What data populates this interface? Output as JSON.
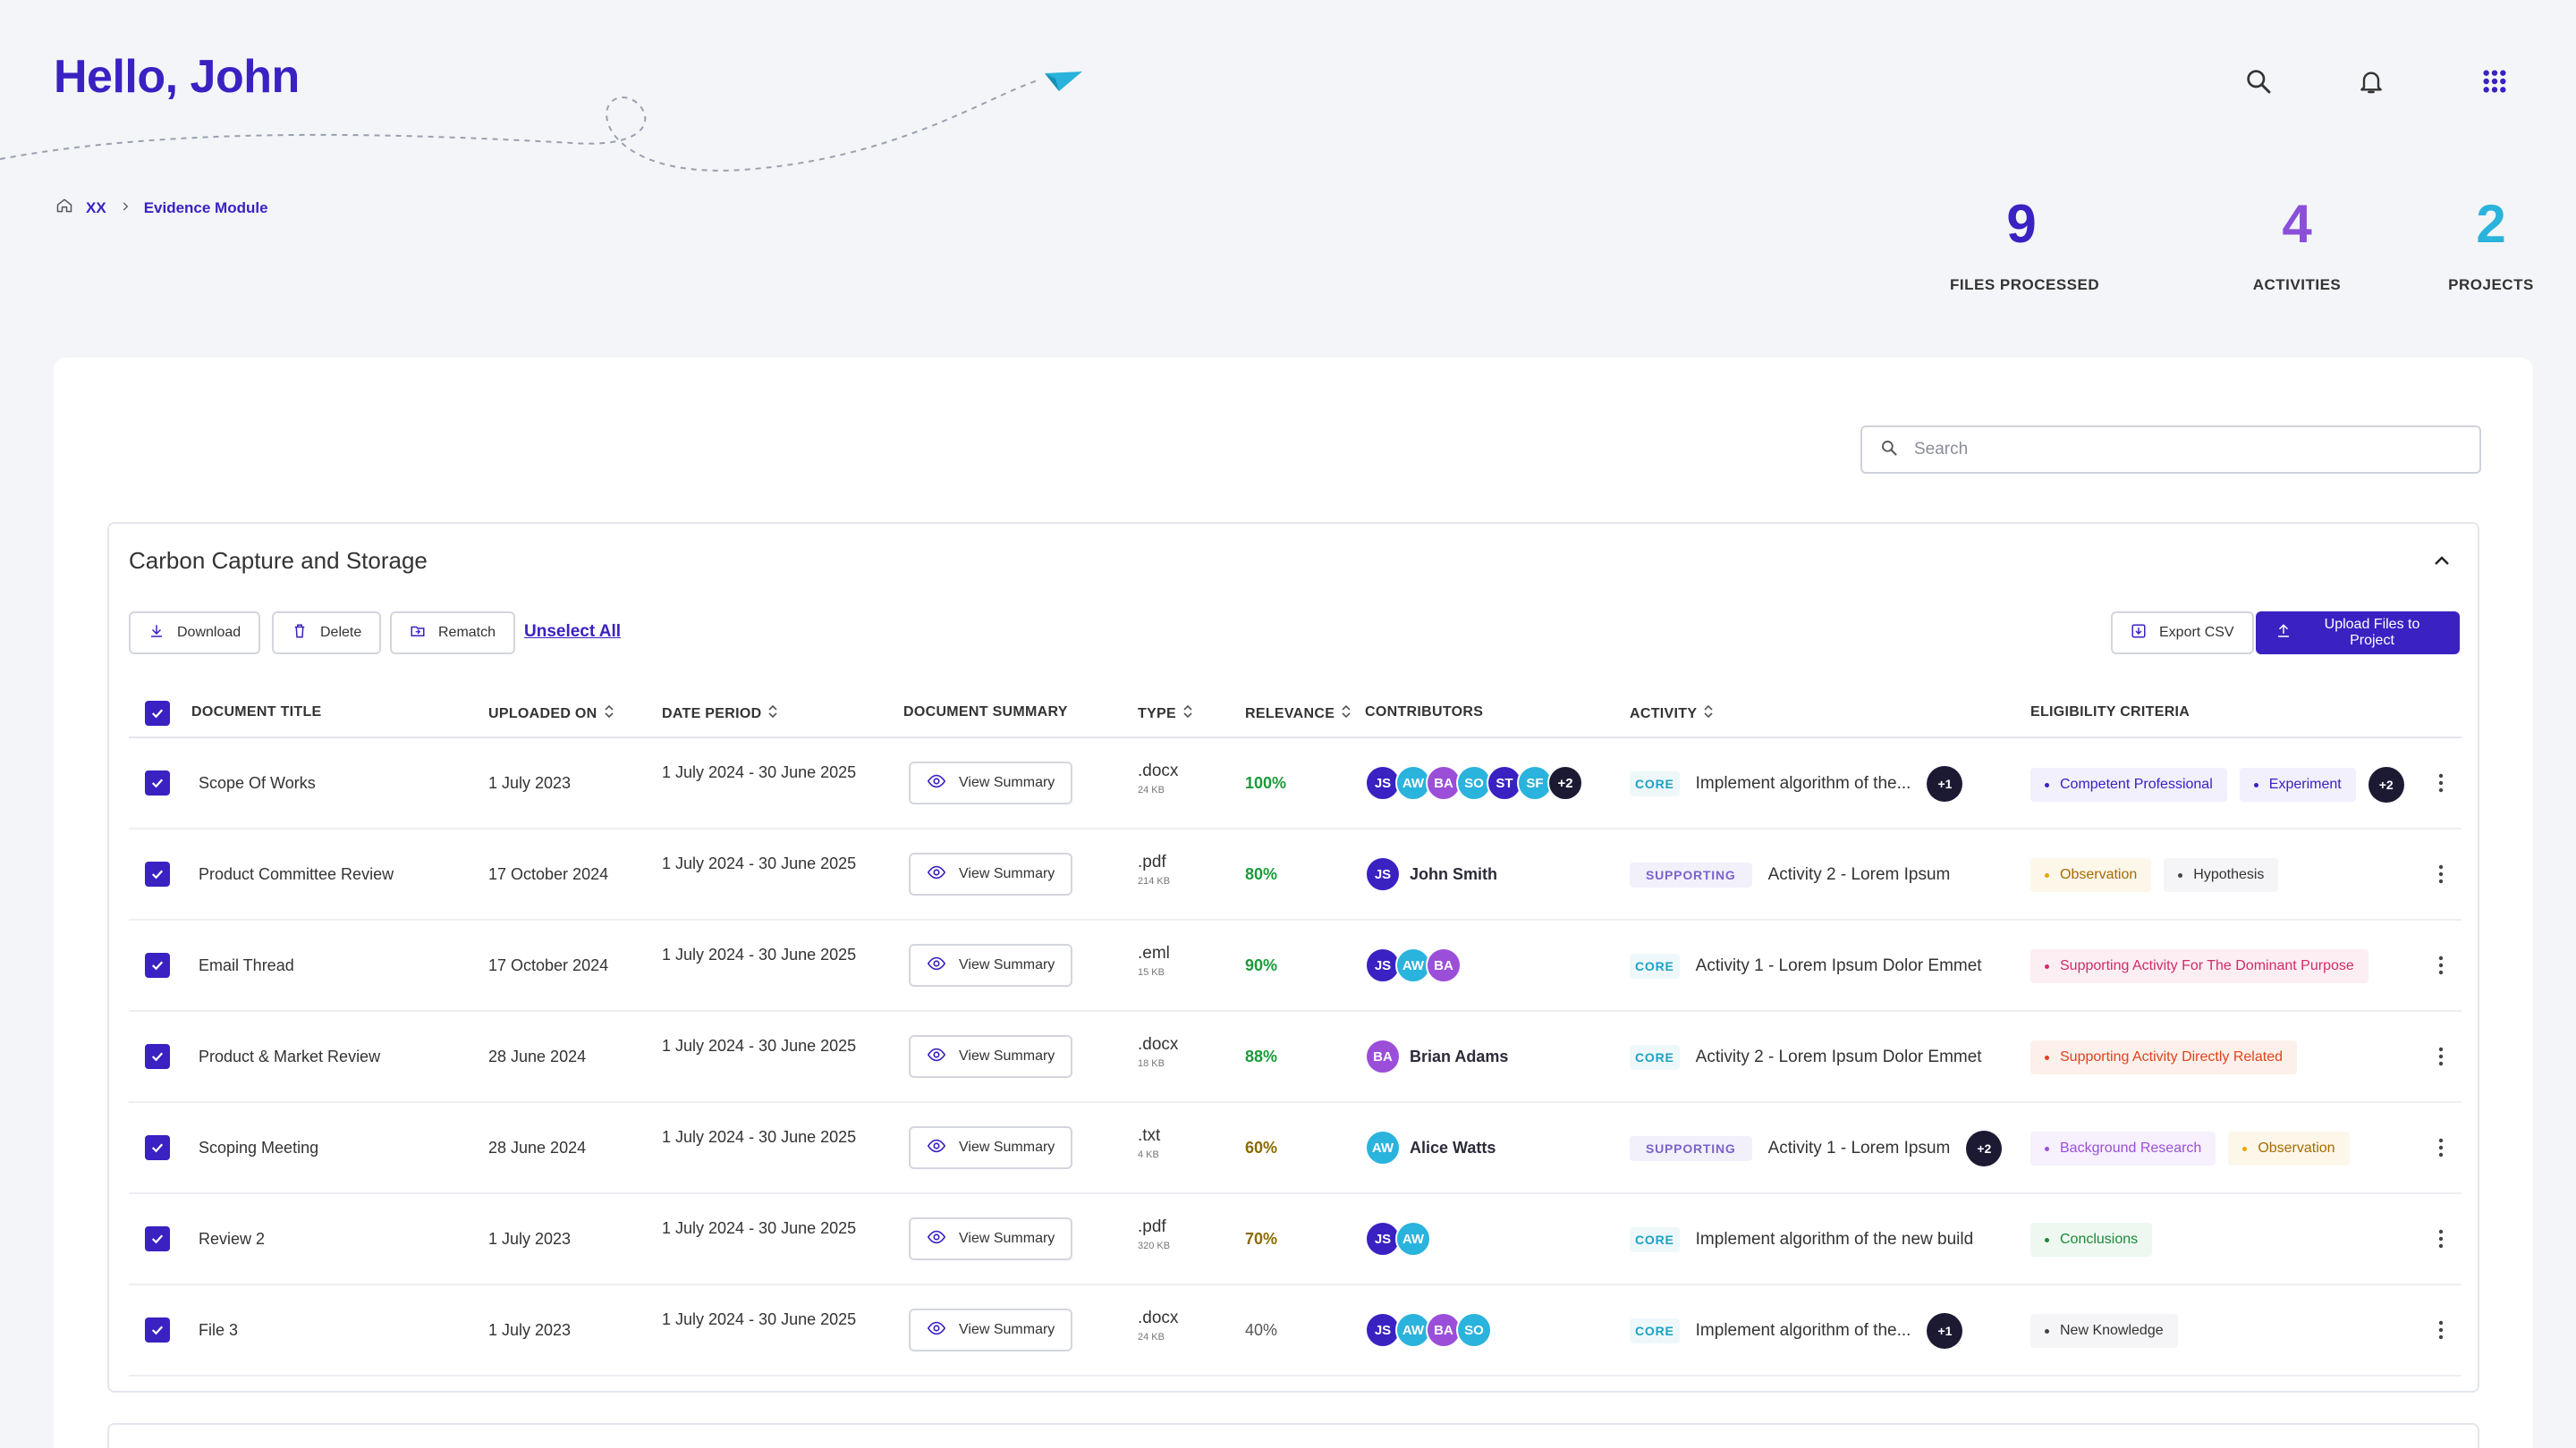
{
  "header": {
    "greeting": "Hello, John"
  },
  "breadcrumb": {
    "root": "XX",
    "current": "Evidence Module"
  },
  "stats": [
    {
      "value": "9",
      "label": "FILES  PROCESSED",
      "color": "#3a21c2"
    },
    {
      "value": "4",
      "label": "ACTIVITIES",
      "color": "#8a4fd8"
    },
    {
      "value": "2",
      "label": "PROJECTS",
      "color": "#2ab3dc"
    }
  ],
  "search": {
    "placeholder": "Search"
  },
  "project": {
    "title": "Carbon Capture and Storage",
    "actions": {
      "download": "Download",
      "delete": "Delete",
      "rematch": "Rematch",
      "unselect_all": "Unselect All",
      "export_csv": "Export CSV",
      "upload": "Upload Files to Project"
    },
    "columns": {
      "title": "DOCUMENT TITLE",
      "uploaded": "UPLOADED ON",
      "period": "DATE PERIOD",
      "summary": "DOCUMENT SUMMARY",
      "type": "TYPE",
      "relevance": "RELEVANCE",
      "contributors": "CONTRIBUTORS",
      "activity": "ACTIVITY",
      "criteria": "ELIGIBILITY CRITERIA"
    },
    "view_summary": "View Summary",
    "rows": [
      {
        "title": "Scope Of Works",
        "uploaded": "1 July 2023",
        "period": "1 July 2024 - 30 June 2025",
        "type": ".docx",
        "size": "24 KB",
        "relevance": "100%"
      },
      {
        "title": "Product Committee Review",
        "uploaded": "17 October 2024",
        "period": "1 July 2024 - 30 June 2025",
        "type": ".pdf",
        "size": "214 KB",
        "relevance": "80%"
      },
      {
        "title": "Email Thread",
        "uploaded": "17 October 2024",
        "period": "1 July 2024 - 30 June 2025",
        "type": ".eml",
        "size": "15 KB",
        "relevance": "90%"
      },
      {
        "title": "Product & Market Review",
        "uploaded": "28 June 2024",
        "period": "1 July 2024 - 30 June 2025",
        "type": ".docx",
        "size": "18 KB",
        "relevance": "88%"
      },
      {
        "title": "Scoping Meeting",
        "uploaded": "28 June 2024",
        "period": "1 July 2024 - 30 June 2025",
        "type": ".txt",
        "size": "4 KB",
        "relevance": "60%"
      },
      {
        "title": "Review 2",
        "uploaded": "1 July 2023",
        "period": "1 July 2024 - 30 June 2025",
        "type": ".pdf",
        "size": "320 KB",
        "relevance": "70%"
      },
      {
        "title": "File 3",
        "uploaded": "1 July 2023",
        "period": "1 July 2024 - 30 June 2025",
        "type": ".docx",
        "size": "24 KB",
        "relevance": "40%"
      }
    ],
    "contributors": [
      {
        "avatars": [
          "JS",
          "AW",
          "BA",
          "SO",
          "ST",
          "SF"
        ],
        "more": "+2"
      },
      {
        "avatars": [
          "JS"
        ],
        "name": "John Smith"
      },
      {
        "avatars": [
          "JS",
          "AW",
          "BA"
        ]
      },
      {
        "avatars": [
          "BA"
        ],
        "name": "Brian Adams"
      },
      {
        "avatars": [
          "AW"
        ],
        "name": "Alice Watts"
      },
      {
        "avatars": [
          "JS",
          "AW"
        ]
      },
      {
        "avatars": [
          "JS",
          "AW",
          "BA",
          "SO"
        ]
      }
    ],
    "activities": [
      {
        "tag": "CORE",
        "text": "Implement algorithm of the...",
        "more": "+1"
      },
      {
        "tag": "SUPPORTING",
        "text": "Activity 2 - Lorem Ipsum"
      },
      {
        "tag": "CORE",
        "text": "Activity 1 - Lorem Ipsum Dolor Emmet"
      },
      {
        "tag": "CORE",
        "text": "Activity 2 - Lorem Ipsum Dolor Emmet"
      },
      {
        "tag": "SUPPORTING",
        "text": "Activity 1 - Lorem Ipsum",
        "more": "+2"
      },
      {
        "tag": "CORE",
        "text": "Implement algorithm of the new build"
      },
      {
        "tag": "CORE",
        "text": "Implement algorithm of the...",
        "more": "+1"
      }
    ],
    "criteria": [
      {
        "pills": [
          {
            "text": "Competent Professional",
            "kind": "blue"
          },
          {
            "text": "Experiment",
            "kind": "blue"
          }
        ],
        "more": "+2"
      },
      {
        "pills": [
          {
            "text": "Observation",
            "kind": "amber"
          },
          {
            "text": "Hypothesis",
            "kind": "grey"
          }
        ]
      },
      {
        "pills": [
          {
            "text": "Supporting Activity For The Dominant Purpose",
            "kind": "pink"
          }
        ]
      },
      {
        "pills": [
          {
            "text": "Supporting Activity Directly Related",
            "kind": "red"
          }
        ]
      },
      {
        "pills": [
          {
            "text": "Background Research",
            "kind": "purple"
          },
          {
            "text": "Observation",
            "kind": "amber"
          }
        ]
      },
      {
        "pills": [
          {
            "text": "Conclusions",
            "kind": "green"
          }
        ]
      },
      {
        "pills": [
          {
            "text": "New Knowledge",
            "kind": "grey"
          }
        ]
      }
    ]
  },
  "colors": {
    "accent": "#3a21c2",
    "relevance_high": "#1a9a3a",
    "relevance_mid": "#8a6a00",
    "relevance_low": "#555555",
    "avatar": {
      "JS": "#3a21c2",
      "AW": "#2ab3dc",
      "BA": "#9b4fd8",
      "SO": "#2ab3dc",
      "ST": "#3a21c2",
      "SF": "#2ab3dc"
    },
    "pill": {
      "blue": {
        "fg": "#3a21c2",
        "bg": "#f1f0fc",
        "dot": "#3a21c2"
      },
      "amber": {
        "fg": "#a66b00",
        "bg": "#fdf7ea",
        "dot": "#e6a500"
      },
      "grey": {
        "fg": "#333333",
        "bg": "#f5f5f7",
        "dot": "#444444"
      },
      "pink": {
        "fg": "#d12a6a",
        "bg": "#fdeef3",
        "dot": "#d12a6a"
      },
      "red": {
        "fg": "#e0421e",
        "bg": "#fdf0ea",
        "dot": "#e0421e"
      },
      "purple": {
        "fg": "#9b4fd8",
        "bg": "#f7f0fd",
        "dot": "#9b4fd8"
      },
      "green": {
        "fg": "#1a8a3a",
        "bg": "#eef8f0",
        "dot": "#1a8a3a"
      }
    }
  }
}
